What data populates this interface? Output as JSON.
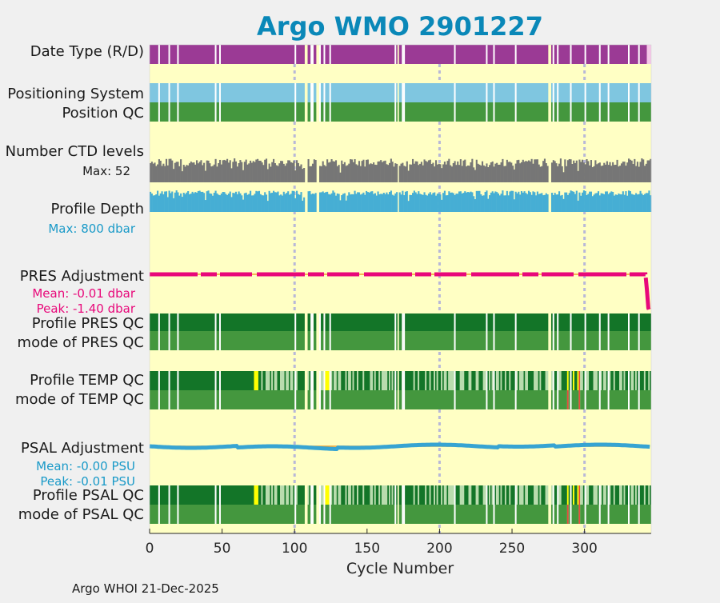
{
  "colors": {
    "background": "#f0f0f0",
    "plot_bg": "#ffffc4",
    "title": "#0a88b8",
    "purple": "#9b3a95",
    "light_blue": "#7fc6e0",
    "green_mid": "#44973e",
    "green_dark": "#137528",
    "grey": "#767676",
    "cyan_blue": "#46aed4",
    "magenta": "#e8087a",
    "psal_blue": "#37a4d2",
    "pale_green": "#b9dcae",
    "yellow": "#ffff00",
    "red": "#e64a3c",
    "orange_line": "#f2a02c",
    "grid": "#b8b8d8",
    "pres_text": "#e8087a",
    "psal_text": "#1a9ac8",
    "depth_text": "#1a9ac8"
  },
  "chart_data": {
    "type": "bar",
    "title": "Argo WMO 2901227",
    "xlabel": "Cycle Number",
    "xlim": [
      0,
      346
    ],
    "xticks": [
      0,
      50,
      100,
      150,
      200,
      250,
      300
    ],
    "grid_x": [
      100,
      200,
      300
    ],
    "missing_cycles": [
      107,
      108,
      115,
      116,
      171,
      275,
      276
    ],
    "descending_cycles": [
      343,
      344,
      345
    ],
    "last_cycle": 345,
    "series": [
      {
        "name": "Date Type (R/D)",
        "kind": "status",
        "values": "R for cycles 0-342, D for 343-345"
      },
      {
        "name": "Positioning System",
        "kind": "status"
      },
      {
        "name": "Position QC",
        "kind": "status"
      },
      {
        "name": "Number CTD levels",
        "kind": "bars",
        "max": 52
      },
      {
        "name": "Profile Depth",
        "kind": "bars",
        "max_dbar": 800
      },
      {
        "name": "PRES Adjustment",
        "kind": "line",
        "mean_dbar": -0.01,
        "peak_dbar": -1.4
      },
      {
        "name": "Profile PRES QC",
        "kind": "status"
      },
      {
        "name": "mode of PRES QC",
        "kind": "status"
      },
      {
        "name": "Profile TEMP QC",
        "kind": "status"
      },
      {
        "name": "mode of TEMP QC",
        "kind": "status"
      },
      {
        "name": "PSAL Adjustment",
        "kind": "line",
        "mean_psu": -0.0,
        "peak_psu": -0.01
      },
      {
        "name": "Profile PSAL QC",
        "kind": "status"
      },
      {
        "name": "mode of PSAL QC",
        "kind": "status"
      }
    ]
  },
  "labels": {
    "date_type": "Date Type (R/D)",
    "positioning_system": "Positioning System",
    "position_qc": "Position QC",
    "number_ctd_levels": "Number CTD levels",
    "ctd_max": "Max: 52",
    "profile_depth": "Profile Depth",
    "depth_max": "Max:  800 dbar",
    "pres_adjustment": "PRES Adjustment",
    "pres_mean": "Mean: -0.01 dbar",
    "pres_peak": "Peak: -1.40 dbar",
    "profile_pres_qc": "Profile PRES QC",
    "mode_pres_qc": "mode of PRES QC",
    "profile_temp_qc": "Profile TEMP QC",
    "mode_temp_qc": "mode of TEMP QC",
    "psal_adjustment": "PSAL Adjustment",
    "psal_mean": "Mean: -0.00 PSU",
    "psal_peak": "Peak: -0.01 PSU",
    "profile_psal_qc": "Profile PSAL QC",
    "mode_psal_qc": "mode of PSAL QC"
  },
  "footer": "Argo WHOI 21-Dec-2025"
}
